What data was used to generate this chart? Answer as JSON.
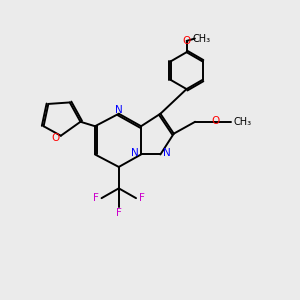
{
  "bg_color": "#ebebeb",
  "bond_color": "#000000",
  "nitrogen_color": "#0000ff",
  "oxygen_color": "#ff0000",
  "fluorine_color": "#cc00cc",
  "line_width": 1.4,
  "dbo": 0.055,
  "figsize": [
    3.0,
    3.0
  ],
  "dpi": 100,
  "xlim": [
    0,
    10
  ],
  "ylim": [
    0,
    10
  ]
}
